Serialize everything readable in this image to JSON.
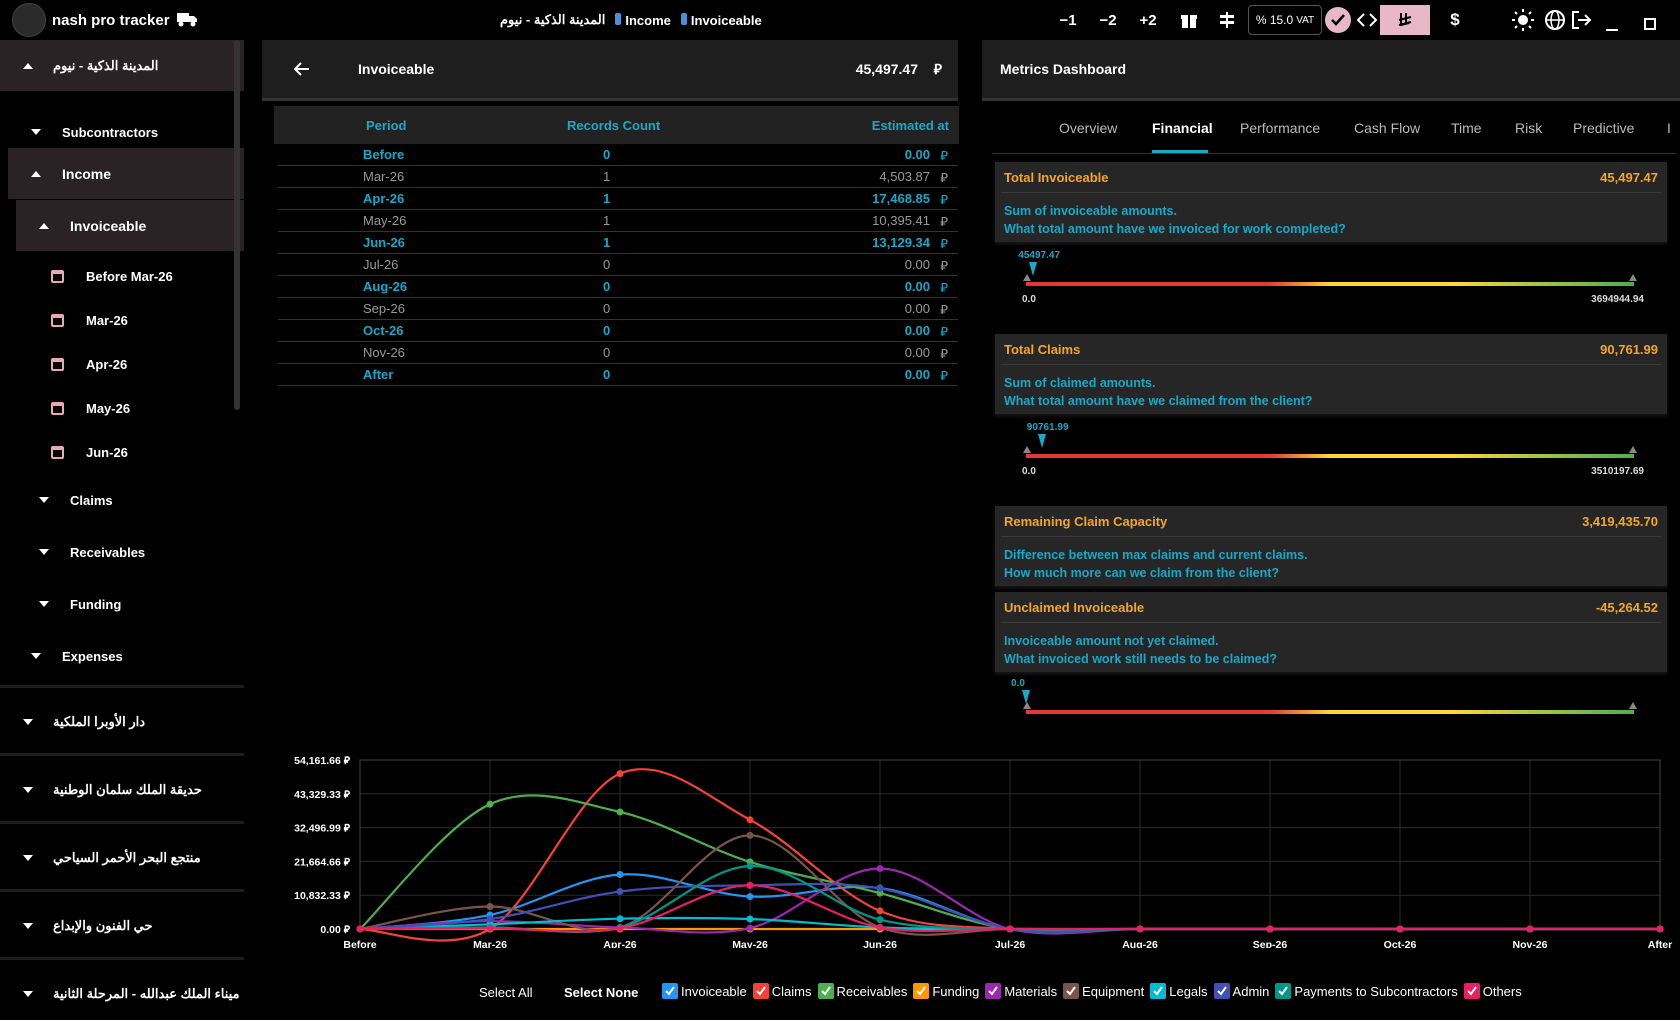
{
  "topbar": {
    "app_title": "nash pro tracker",
    "breadcrumb": [
      "المدينة الذكية - نيوم",
      "Income",
      "Invoiceable"
    ],
    "buttons": [
      "−1",
      "−2",
      "+2"
    ],
    "vat_percent": "% 15.0",
    "vat_label": "VAT",
    "currency_symbol": "$"
  },
  "sidebar": {
    "project_top": "المدينة الذكية - نيوم",
    "items": [
      {
        "label": "Subcontractors"
      },
      {
        "label": "Income"
      },
      {
        "label": "Invoiceable"
      },
      {
        "label": "Before Mar-26"
      },
      {
        "label": "Mar-26"
      },
      {
        "label": "Apr-26"
      },
      {
        "label": "May-26"
      },
      {
        "label": "Jun-26"
      },
      {
        "label": "Claims"
      },
      {
        "label": "Receivables"
      },
      {
        "label": "Funding"
      },
      {
        "label": "Expenses"
      }
    ],
    "projects": [
      "دار الأوبرا الملكية",
      "حديقة الملك سلمان الوطنية",
      "منتجع البحر الأحمر السياحي",
      "حي الفنون والإبداع",
      "ميناء الملك عبدالله - المرحلة الثانية"
    ]
  },
  "invoiceable_panel": {
    "title": "Invoiceable",
    "total": "45,497.47",
    "columns": [
      "Period",
      "Records Count",
      "Estimated at"
    ],
    "rows": [
      {
        "period": "Before",
        "count": "0",
        "amount": "0.00",
        "hl": true
      },
      {
        "period": "Mar-26",
        "count": "1",
        "amount": "4,503.87",
        "hl": false
      },
      {
        "period": "Apr-26",
        "count": "1",
        "amount": "17,468.85",
        "hl": true
      },
      {
        "period": "May-26",
        "count": "1",
        "amount": "10,395.41",
        "hl": false
      },
      {
        "period": "Jun-26",
        "count": "1",
        "amount": "13,129.34",
        "hl": true
      },
      {
        "period": "Jul-26",
        "count": "0",
        "amount": "0.00",
        "hl": false
      },
      {
        "period": "Aug-26",
        "count": "0",
        "amount": "0.00",
        "hl": true
      },
      {
        "period": "Sep-26",
        "count": "0",
        "amount": "0.00",
        "hl": false
      },
      {
        "period": "Oct-26",
        "count": "0",
        "amount": "0.00",
        "hl": true
      },
      {
        "period": "Nov-26",
        "count": "0",
        "amount": "0.00",
        "hl": false
      },
      {
        "period": "After",
        "count": "0",
        "amount": "0.00",
        "hl": true
      }
    ]
  },
  "metrics": {
    "title": "Metrics Dashboard",
    "tabs": [
      "Overview",
      "Financial",
      "Performance",
      "Cash Flow",
      "Time",
      "Risk",
      "Predictive",
      "I"
    ],
    "cards": [
      {
        "title": "Total Invoiceable",
        "value": "45,497.47",
        "desc1": "Sum of invoiceable amounts.",
        "desc2": "What total amount have we invoiced for work completed?",
        "g_val": "45497.47",
        "g_min": "0.0",
        "g_max": "3694944.94",
        "g_frac": 0.012
      },
      {
        "title": "Total Claims",
        "value": "90,761.99",
        "desc1": "Sum of claimed amounts.",
        "desc2": "What total amount have we claimed from the client?",
        "g_val": "90761.99",
        "g_min": "0.0",
        "g_max": "3510197.69",
        "g_frac": 0.026
      },
      {
        "title": "Remaining Claim Capacity",
        "value": "3,419,435.70",
        "desc1": "Difference between max claims and current claims.",
        "desc2": "How much more can we claim from the client?"
      },
      {
        "title": "Unclaimed Invoiceable",
        "value": "-45,264.52",
        "desc1": "Invoiceable amount not yet claimed.",
        "desc2": "What invoiced work still needs to be claimed?",
        "g_val": "0.0",
        "g_frac": 0.0
      }
    ]
  },
  "chart_data": {
    "type": "line",
    "categories": [
      "Before",
      "Mar-26",
      "Apr-26",
      "May-26",
      "Jun-26",
      "Jul-26",
      "Aug-26",
      "Sep-26",
      "Oct-26",
      "Nov-26",
      "After"
    ],
    "ytick_labels": [
      "0.00",
      "10,832.33",
      "21,664.66",
      "32,496.99",
      "43,329.33",
      "54,161.66"
    ],
    "ylim": [
      0,
      54161.66
    ],
    "series": [
      {
        "name": "Invoiceable",
        "color": "#2196f3",
        "values": [
          0,
          4503.87,
          17468.85,
          10395.41,
          13129.34,
          0,
          0,
          0,
          0,
          0,
          0
        ]
      },
      {
        "name": "Claims",
        "color": "#f44336",
        "values": [
          0,
          0,
          49800,
          35000,
          5800,
          0,
          0,
          0,
          0,
          0,
          0
        ]
      },
      {
        "name": "Receivables",
        "color": "#4caf50",
        "values": [
          0,
          40000,
          37500,
          21500,
          11500,
          0,
          0,
          0,
          0,
          0,
          0
        ]
      },
      {
        "name": "Funding",
        "color": "#ff9800",
        "values": [
          0,
          0,
          0,
          0,
          0,
          0,
          0,
          0,
          0,
          0,
          0
        ]
      },
      {
        "name": "Materials",
        "color": "#9c27b0",
        "values": [
          0,
          2500,
          500,
          300,
          19400,
          0,
          0,
          0,
          0,
          0,
          0
        ]
      },
      {
        "name": "Equipment",
        "color": "#795548",
        "values": [
          0,
          7200,
          500,
          30000,
          500,
          0,
          0,
          0,
          0,
          0,
          0
        ]
      },
      {
        "name": "Legals",
        "color": "#00bcd4",
        "values": [
          0,
          1500,
          3300,
          3200,
          500,
          0,
          0,
          0,
          0,
          0,
          0
        ]
      },
      {
        "name": "Admin",
        "color": "#3f51b5",
        "values": [
          0,
          3200,
          12000,
          14000,
          13000,
          0,
          0,
          0,
          0,
          0,
          0
        ]
      },
      {
        "name": "Payments to Subcontractors",
        "color": "#009688",
        "values": [
          0,
          500,
          500,
          20200,
          3000,
          0,
          0,
          0,
          0,
          0,
          0
        ]
      },
      {
        "name": "Others",
        "color": "#e91e63",
        "values": [
          0,
          200,
          200,
          14000,
          500,
          0,
          0,
          0,
          0,
          0,
          0
        ]
      }
    ],
    "select_all": "Select All",
    "select_none": "Select None"
  }
}
